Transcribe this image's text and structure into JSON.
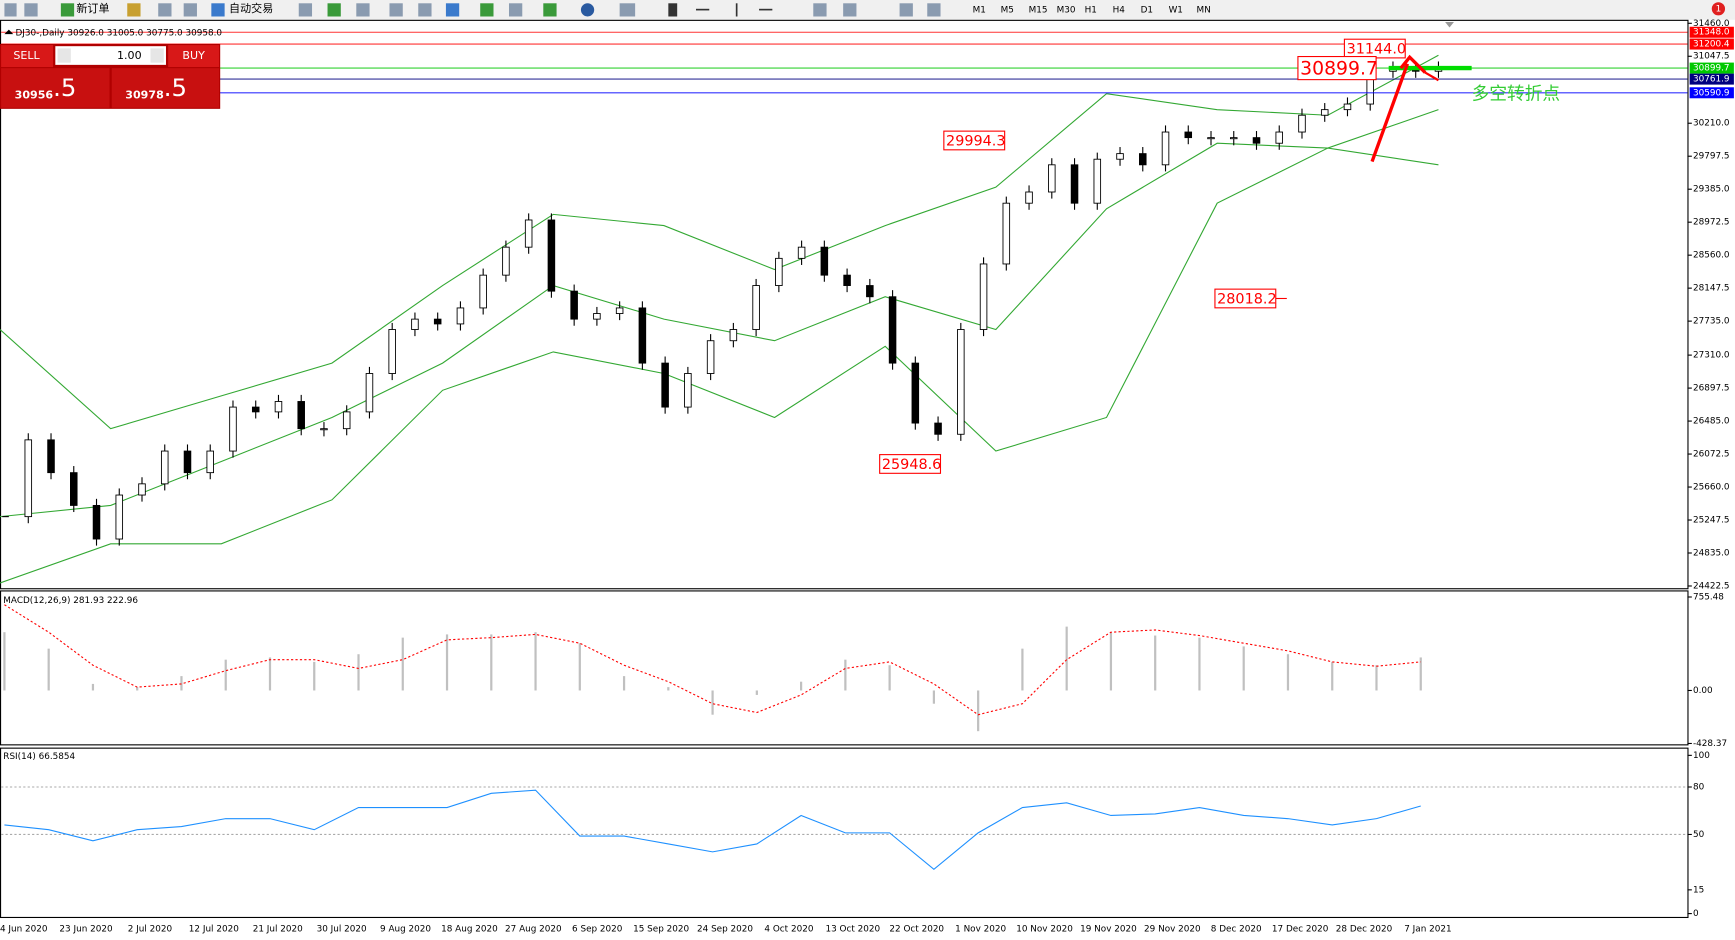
{
  "toolbar": {
    "new_order": "新订单",
    "auto_trading": "自动交易",
    "timeframes": [
      "M1",
      "M5",
      "M15",
      "M30",
      "H1",
      "H4",
      "D1",
      "W1",
      "MN"
    ],
    "notification": "1"
  },
  "chart_header": "DJ30-,Daily  30926.0 31005.0 30775.0 30958.0",
  "trade_panel": {
    "sell": "SELL",
    "lot": "1.00",
    "buy": "BUY",
    "sell_big": "30956",
    "sell_small": ".5",
    "buy_big": "30978",
    "buy_small": ".5"
  },
  "time_axis": [
    "4 Jun 2020",
    "23 Jun 2020",
    "2 Jul 2020",
    "12 Jul 2020",
    "21 Jul 2020",
    "30 Jul 2020",
    "9 Aug 2020",
    "18 Aug 2020",
    "27 Aug 2020",
    "6 Sep 2020",
    "15 Sep 2020",
    "24 Sep 2020",
    "4 Oct 2020",
    "13 Oct 2020",
    "22 Oct 2020",
    "1 Nov 2020",
    "10 Nov 2020",
    "19 Nov 2020",
    "29 Nov 2020",
    "8 Dec 2020",
    "17 Dec 2020",
    "28 Dec 2020",
    "7 Jan 2021"
  ],
  "chart_data": [
    {
      "type": "candlestick",
      "ylim": [
        24395,
        31545
      ],
      "yticks": [
        {
          "value": 31460,
          "label": "31460.0"
        },
        {
          "value": 31047.5,
          "label": "31047.5"
        },
        {
          "value": 30210,
          "label": "30210.0"
        },
        {
          "value": 29797.5,
          "label": "29797.5"
        },
        {
          "value": 29385,
          "label": "29385.0"
        },
        {
          "value": 28972.5,
          "label": "28972.5"
        },
        {
          "value": 28560,
          "label": "28560.0"
        },
        {
          "value": 28147.5,
          "label": "28147.5"
        },
        {
          "value": 27735,
          "label": "27735.0"
        },
        {
          "value": 27310,
          "label": "27310.0"
        },
        {
          "value": 26897.5,
          "label": "26897.5"
        },
        {
          "value": 26485,
          "label": "26485.0"
        },
        {
          "value": 26072.5,
          "label": "26072.5"
        },
        {
          "value": 25660,
          "label": "25660.0"
        },
        {
          "value": 25247.5,
          "label": "25247.5"
        },
        {
          "value": 24835,
          "label": "24835.0"
        },
        {
          "value": 24422.5,
          "label": "24422.5"
        }
      ],
      "closes": [
        25290,
        26250,
        25840,
        25430,
        25010,
        25560,
        25700,
        26110,
        25840,
        26110,
        26660,
        26600,
        26730,
        26390,
        26390,
        26600,
        27080,
        27630,
        27760,
        27700,
        27900,
        28310,
        28660,
        29000,
        28110,
        27760,
        27830,
        27900,
        27210,
        26660,
        27080,
        27490,
        27630,
        28180,
        28520,
        28660,
        28310,
        28180,
        28040,
        27210,
        26460,
        26320,
        27630,
        28450,
        29210,
        29350,
        29690,
        29210,
        29760,
        29830,
        29690,
        30100,
        30030,
        30030,
        30030,
        29960,
        30100,
        30310,
        30380,
        30450,
        30860,
        30900,
        30860,
        30900
      ],
      "bands": {
        "color": "#33a833",
        "upper": [
          27630,
          26390,
          26800,
          27210,
          28180,
          29070,
          28930,
          28380,
          28930,
          29410,
          30580,
          30380,
          30310,
          31060
        ],
        "middle": [
          25290,
          25430,
          25980,
          26530,
          27210,
          28180,
          27760,
          27490,
          28040,
          27630,
          29140,
          29960,
          29900,
          30380
        ],
        "lower": [
          24460,
          24950,
          24950,
          25500,
          26870,
          27350,
          27080,
          26530,
          27420,
          26110,
          26530,
          29210,
          29900,
          29690
        ]
      },
      "levels": [
        {
          "value": 31348,
          "label": "31348.0",
          "color": "#ff0000"
        },
        {
          "value": 31200.4,
          "label": "31200.4",
          "color": "#ff0000"
        },
        {
          "value": 30899.7,
          "label": "30899.7",
          "color": "#00c800"
        },
        {
          "value": 30761.9,
          "label": "30761.9",
          "color": "#000080"
        },
        {
          "value": 30590.9,
          "label": "30590.9",
          "color": "#0000ff"
        }
      ],
      "annotations": [
        {
          "value": 31144,
          "label": "31144.0"
        },
        {
          "value": 30899.7,
          "label": "30899.7"
        },
        {
          "value": 29994.3,
          "label": "29994.3"
        },
        {
          "value": 28018.2,
          "label": "28018.2"
        },
        {
          "value": 25948.6,
          "label": "25948.6"
        }
      ],
      "text_annotation": {
        "text": "多空转折点",
        "color": "#33cc33"
      }
    },
    {
      "type": "macd",
      "label": "MACD(12,26,9) 281.93 222.96",
      "ylim": [
        -444,
        800
      ],
      "yticks": [
        755.48,
        {
          "value": 0,
          "label": "0.00"
        },
        -428.37
      ],
      "histogram": {
        "color": "#c0c0c0",
        "values": [
          471,
          338,
          53,
          27,
          116,
          249,
          267,
          231,
          293,
          427,
          453,
          453,
          471,
          382,
          116,
          27,
          -196,
          -36,
          71,
          249,
          204,
          -107,
          -329,
          338,
          516,
          471,
          444,
          427,
          356,
          293,
          231,
          204,
          267
        ]
      },
      "signal": {
        "color": "#ff0000",
        "values": [
          693,
          471,
          204,
          27,
          53,
          160,
          249,
          249,
          178,
          249,
          409,
          427,
          453,
          382,
          204,
          71,
          -107,
          -178,
          -36,
          178,
          231,
          53,
          -196,
          -107,
          249,
          471,
          489,
          444,
          382,
          320,
          231,
          196,
          231
        ]
      }
    },
    {
      "type": "line",
      "label": "RSI(14) 66.5854",
      "ylim": [
        -2.8,
        104.2
      ],
      "yticks": [
        100,
        80,
        50,
        15,
        0
      ],
      "levels": [
        80,
        50
      ],
      "line": {
        "color": "#1e90ff",
        "values": [
          56,
          53,
          46,
          53,
          55,
          60,
          60,
          53,
          67,
          67,
          67,
          76,
          78,
          49,
          49,
          44,
          39,
          44,
          62,
          51,
          51,
          28,
          51,
          67,
          70,
          62,
          63,
          67,
          62,
          60,
          56,
          60,
          68
        ]
      }
    }
  ]
}
